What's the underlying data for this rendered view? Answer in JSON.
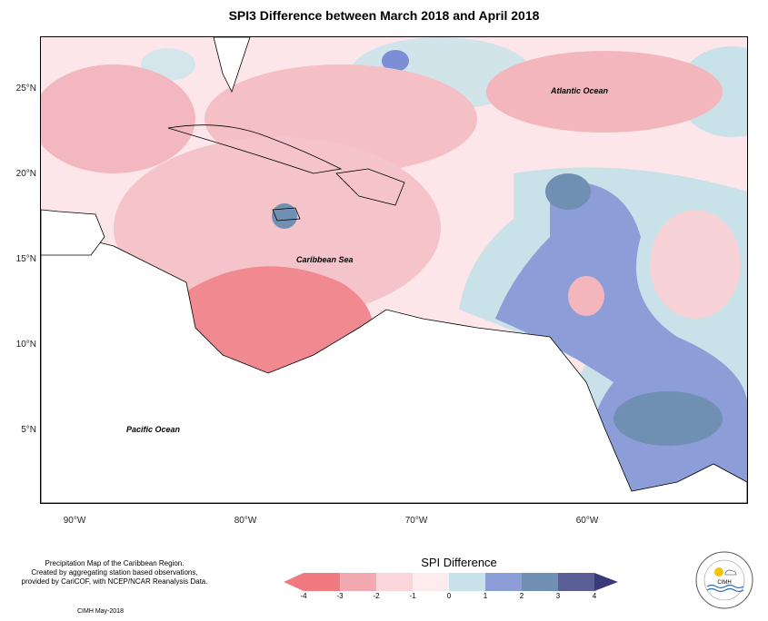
{
  "title": "SPI3 Difference between March 2018 and April 2018",
  "axes": {
    "lat_labels": [
      "25°N",
      "20°N",
      "15°N",
      "10°N",
      "5°N"
    ],
    "lon_labels": [
      "90°W",
      "80°W",
      "70°W",
      "60°W"
    ]
  },
  "places": {
    "atlantic": "Atlantic Ocean",
    "caribbean": "Caribbean Sea",
    "pacific": "Pacific Ocean"
  },
  "notes": {
    "line1": "Precipitation Map of the Caribbean Region.",
    "line2": "Created by aggregating station based observations,",
    "line3": "provided by CariCOF, with NCEP/NCAR Reanalysis Data."
  },
  "credit": "CIMH May-2018",
  "legend": {
    "title": "SPI Difference",
    "ticks": [
      "-4",
      "-3",
      "-2",
      "-1",
      "0",
      "1",
      "2",
      "3",
      "4"
    ],
    "colors": [
      "#f07a80",
      "#f2aab0",
      "#f8d6da",
      "#fcecee",
      "#c9e1e8",
      "#8d9dd8",
      "#6f8fb3",
      "#5a5f96"
    ]
  },
  "logo": {
    "text": "CIMH"
  }
}
